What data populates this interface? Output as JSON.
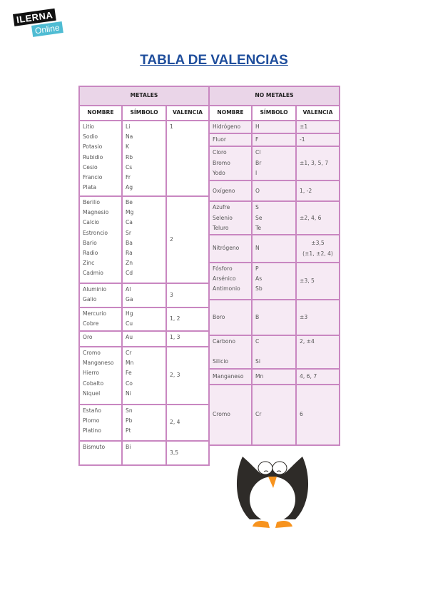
{
  "logo": {
    "line1": "ILERNA",
    "line2": "Online"
  },
  "title": "TABLA DE VALENCIAS",
  "metales": {
    "header": "METALES",
    "columns": [
      "NOMBRE",
      "SÍMBOLO",
      "VALENCIA"
    ],
    "rows": [
      {
        "nombre": "Litio\nSodio\nPotasio\nRubidio\nCesio\nFrancio\nPlata",
        "simbolo": "Li\nNa\nK\nRb\nCs\nFr\nAg",
        "valencia": "1"
      },
      {
        "nombre": "Berilio\nMagnesio\nCalcio\nEstroncio\nBario\nRadio\nZinc\nCadmio",
        "simbolo": "Be\nMg\nCa\nSr\nBa\nRa\nZn\nCd",
        "valencia": "2"
      },
      {
        "nombre": "Aluminio\nGalio",
        "simbolo": "Al\nGa",
        "valencia": "3"
      },
      {
        "nombre": "Mercurio\nCobre",
        "simbolo": "Hg\nCu",
        "valencia": "1, 2"
      },
      {
        "nombre": "Oro",
        "simbolo": "Au",
        "valencia": "1, 3"
      },
      {
        "nombre": "Cromo\nManganeso\nHierro\nCobalto\nNiquel",
        "simbolo": "Cr\nMn\nFe\nCo\nNi",
        "valencia": "2, 3"
      },
      {
        "nombre": "Estaño\nPlomo\nPlatino",
        "simbolo": "Sn\nPb\nPt",
        "valencia": "2, 4"
      },
      {
        "nombre": "Bismuto",
        "simbolo": "Bi",
        "valencia": "3,5"
      }
    ]
  },
  "no_metales": {
    "header": "NO METALES",
    "columns": [
      "NOMBRE",
      "SÍMBOLO",
      "VALENCIA"
    ],
    "rows": [
      {
        "nombre": "Hidrógeno",
        "simbolo": "H",
        "valencia": "±1"
      },
      {
        "nombre": "Fluor",
        "simbolo": "F",
        "valencia": "-1"
      },
      {
        "nombre": "Cloro\nBromo\nYodo",
        "simbolo": "Cl\nBr\nI",
        "valencia": "±1, 3, 5, 7"
      },
      {
        "nombre": "Oxígeno",
        "simbolo": "O",
        "valencia": "1, -2"
      },
      {
        "nombre": "Azufre\nSelenio\nTeluro",
        "simbolo": "S\nSe\nTe",
        "valencia": "±2, 4, 6"
      },
      {
        "nombre": "Nitrógeno",
        "simbolo": "N",
        "valencia": "±3,5\n(±1, ±2, 4)"
      },
      {
        "nombre": "Fósforo\nArsénico\nAntimonio",
        "simbolo": "P\nAs\nSb",
        "valencia": "±3, 5"
      },
      {
        "nombre": "Boro",
        "simbolo": "B",
        "valencia": "±3"
      },
      {
        "nombre": "Carbono\n\nSilicio",
        "simbolo": "C\n\nSi",
        "valencia": "2, ±4"
      },
      {
        "nombre": "Manganeso",
        "simbolo": "Mn",
        "valencia": "4, 6, 7"
      },
      {
        "nombre": "Cromo",
        "simbolo": "Cr",
        "valencia": "6"
      }
    ]
  },
  "colors": {
    "title": "#1f4e9c",
    "border": "#c987c1",
    "header_bg": "#ead5e8",
    "cell_bg": "#f6eaf4"
  },
  "mascot": "penguin-illustration"
}
